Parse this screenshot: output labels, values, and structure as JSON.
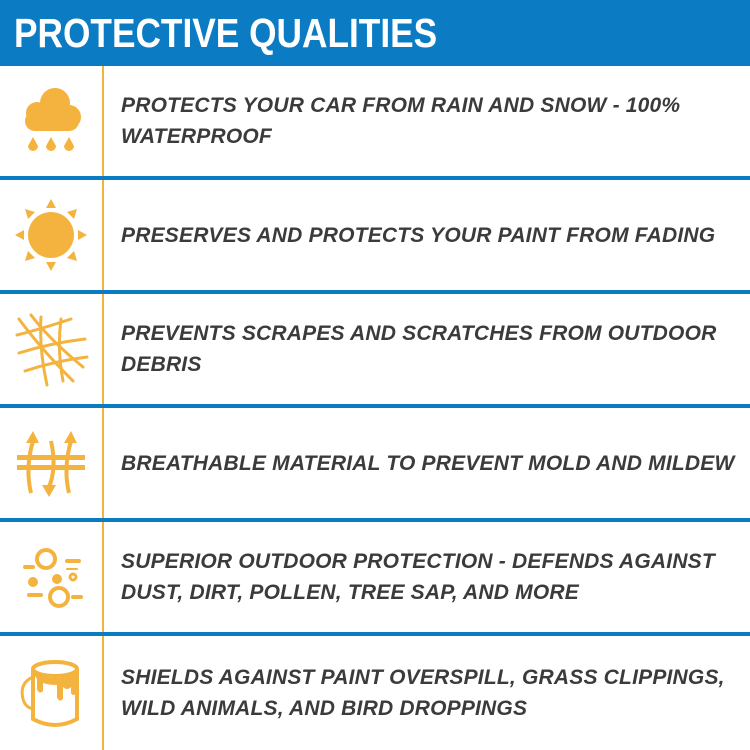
{
  "header": {
    "title": "PROTECTIVE QUALITIES"
  },
  "colors": {
    "header_blue": "#0b7cc4",
    "icon_gold": "#f4b33e",
    "text": "#3b3b3b"
  },
  "features": [
    {
      "icon": "rain-cloud-icon",
      "text": "PROTECTS YOUR CAR FROM RAIN AND SNOW - 100% WATERPROOF"
    },
    {
      "icon": "sun-icon",
      "text": "PRESERVES AND PROTECTS YOUR PAINT FROM FADING"
    },
    {
      "icon": "debris-net-icon",
      "text": "PREVENTS SCRAPES AND SCRATCHES FROM OUTDOOR DEBRIS"
    },
    {
      "icon": "breathable-arrows-icon",
      "text": "BREATHABLE MATERIAL TO PREVENT MOLD AND MILDEW"
    },
    {
      "icon": "dust-particles-icon",
      "text": "SUPERIOR OUTDOOR PROTECTION - DEFENDS AGAINST DUST, DIRT, POLLEN, TREE SAP, AND MORE"
    },
    {
      "icon": "paint-bucket-icon",
      "text": "SHIELDS AGAINST PAINT OVERSPILL, GRASS CLIPPINGS, WILD ANIMALS, AND BIRD DROPPINGS"
    }
  ]
}
